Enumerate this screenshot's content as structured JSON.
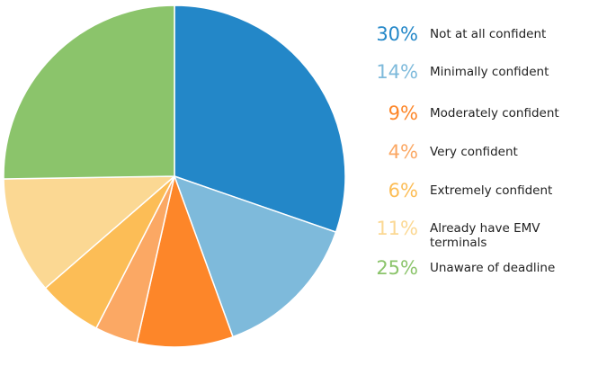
{
  "chart_data": {
    "type": "pie",
    "title": "",
    "slices": [
      {
        "label": "Not at all confident",
        "value": 30,
        "pct_label": "30%",
        "color": "#2387c8"
      },
      {
        "label": "Minimally confident",
        "value": 14,
        "pct_label": "14%",
        "color": "#7ebadb"
      },
      {
        "label": "Moderately confident",
        "value": 9,
        "pct_label": "9%",
        "color": "#fd8629"
      },
      {
        "label": "Very confident",
        "value": 4,
        "pct_label": "4%",
        "color": "#fba864"
      },
      {
        "label": "Extremely confident",
        "value": 6,
        "pct_label": "6%",
        "color": "#fcbd56"
      },
      {
        "label": "Already have EMV terminals",
        "value": 11,
        "pct_label": "11%",
        "color": "#fbd893"
      },
      {
        "label": "Unaware of deadline",
        "value": 25,
        "pct_label": "25%",
        "color": "#8bc46b"
      }
    ],
    "legend_position": "right"
  }
}
